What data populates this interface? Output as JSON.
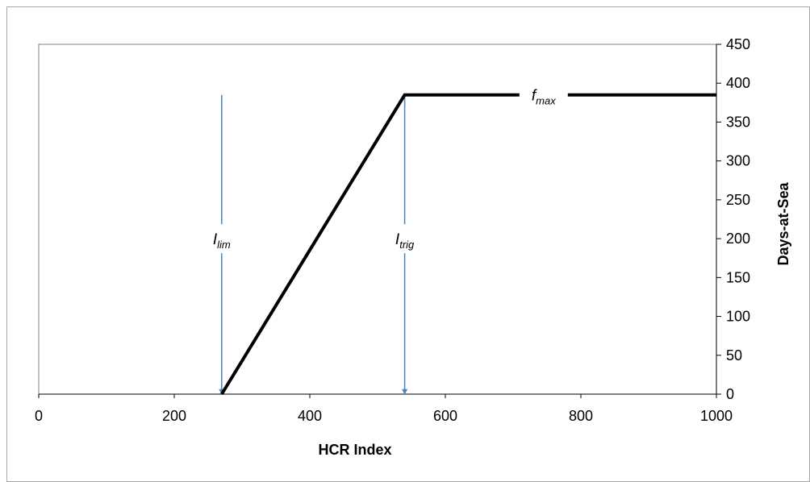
{
  "chart_data": {
    "type": "line",
    "xlabel": "HCR Index",
    "ylabel": "Days-at-Sea",
    "xlim": [
      0,
      1000
    ],
    "ylim": [
      0,
      450
    ],
    "x_ticks": [
      0,
      200,
      400,
      600,
      800,
      1000
    ],
    "y_ticks": [
      0,
      50,
      100,
      150,
      200,
      250,
      300,
      350,
      400,
      450
    ],
    "grid": false,
    "series": [
      {
        "color": "#000000",
        "x": [
          270,
          540,
          1000
        ],
        "y": [
          0,
          385,
          385
        ]
      }
    ],
    "annotations": [
      {
        "id": "ilim",
        "base": "I",
        "sub": "lim",
        "x": 270,
        "y_top": 385,
        "y_bottom": 0,
        "label_y": 200,
        "arrow_color": "#4f81bd"
      },
      {
        "id": "itrig",
        "base": "I",
        "sub": "trig",
        "x": 540,
        "y_top": 385,
        "y_bottom": 0,
        "label_y": 200,
        "arrow_color": "#4f81bd"
      },
      {
        "id": "fmax",
        "base": "f",
        "sub": "max",
        "x": 745,
        "y": 385
      }
    ]
  }
}
